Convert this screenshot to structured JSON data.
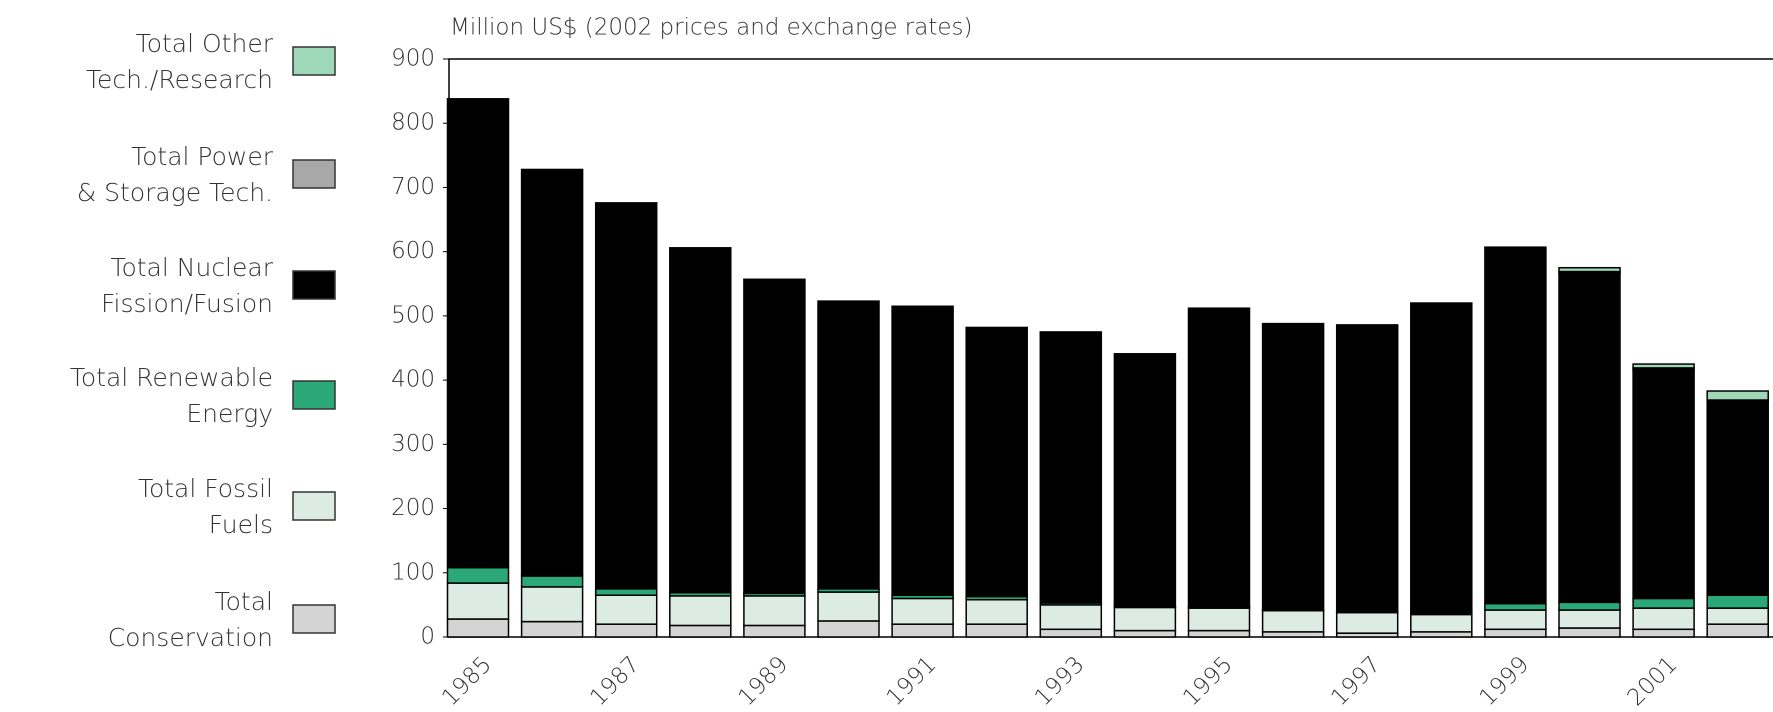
{
  "chart_data": {
    "type": "bar",
    "stacked": true,
    "y_axis_label": "Million US$ (2002 prices and exchange rates)",
    "categories": [
      "1985",
      null,
      "1987",
      null,
      "1989",
      null,
      "1991",
      null,
      "1993",
      null,
      "1995",
      null,
      "1997",
      null,
      "1999",
      null,
      "2001",
      null
    ],
    "ylim": [
      0,
      900
    ],
    "yticks": [
      0,
      100,
      200,
      300,
      400,
      500,
      600,
      700,
      800,
      900
    ],
    "legend_position": "left",
    "series": [
      {
        "name": "Total\nConservation",
        "color": "#d4d4d4",
        "values": [
          28,
          24,
          20,
          18,
          18,
          25,
          20,
          20,
          12,
          10,
          10,
          8,
          6,
          8,
          12,
          14,
          12,
          20
        ]
      },
      {
        "name": "Total Fossil\nFuels",
        "color": "#dcebe4",
        "values": [
          56,
          54,
          45,
          46,
          46,
          45,
          40,
          38,
          38,
          36,
          35,
          33,
          32,
          27,
          30,
          28,
          33,
          25
        ]
      },
      {
        "name": "Total Renewable\nEnergy",
        "color": "#2aa878",
        "values": [
          24,
          17,
          10,
          5,
          4,
          5,
          5,
          5,
          3,
          2,
          2,
          1,
          1,
          1,
          10,
          12,
          15,
          20
        ]
      },
      {
        "name": "Total Nuclear\nFission/Fusion",
        "color": "#000000",
        "values": [
          730,
          633,
          601,
          537,
          489,
          448,
          450,
          419,
          422,
          393,
          465,
          446,
          447,
          484,
          555,
          513,
          357,
          302
        ]
      },
      {
        "name": "Total Power\n& Storage Tech.",
        "color": "#a8a8a8",
        "values": [
          0,
          0,
          0,
          0,
          0,
          0,
          0,
          0,
          0,
          0,
          0,
          0,
          0,
          0,
          0,
          2,
          2,
          2
        ]
      },
      {
        "name": "Total Other\nTech./Research",
        "color": "#9fd8b8",
        "values": [
          0,
          0,
          0,
          0,
          0,
          0,
          0,
          0,
          0,
          0,
          0,
          0,
          0,
          0,
          0,
          6,
          6,
          14
        ]
      }
    ]
  }
}
